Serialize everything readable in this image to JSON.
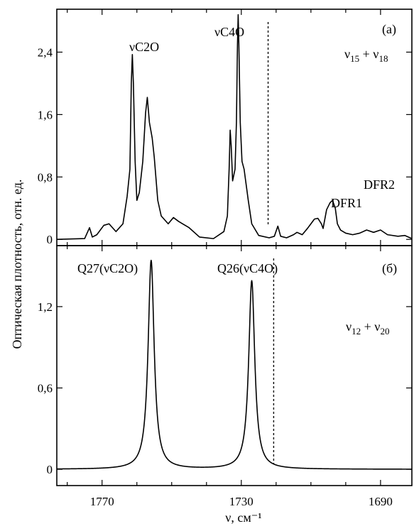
{
  "chart_data": [
    {
      "panel": "a",
      "type": "line",
      "panel_label": "(а)",
      "xlabel": "ν, см⁻¹",
      "ylabel": "Оптическая плотность, отн. ед.",
      "xlim": [
        1783,
        1681
      ],
      "ylim": [
        -0.08,
        2.95
      ],
      "x_ticks": [
        1770,
        1730,
        1690
      ],
      "y_ticks": [
        "0",
        "0,8",
        "1,6",
        "2,4"
      ],
      "y_tick_values": [
        0,
        0.8,
        1.6,
        2.4
      ],
      "series": [
        {
          "points": [
            [
              1783,
              0.0
            ],
            [
              1775,
              0.01
            ],
            [
              1773.6,
              0.15
            ],
            [
              1772.8,
              0.03
            ],
            [
              1771.5,
              0.06
            ],
            [
              1769.5,
              0.18
            ],
            [
              1768,
              0.2
            ],
            [
              1766,
              0.1
            ],
            [
              1764,
              0.2
            ],
            [
              1762.8,
              0.55
            ],
            [
              1762,
              0.9
            ],
            [
              1761.6,
              2.0
            ],
            [
              1761.3,
              2.37
            ],
            [
              1761.0,
              2.0
            ],
            [
              1760.5,
              1.0
            ],
            [
              1760,
              0.5
            ],
            [
              1759.3,
              0.6
            ],
            [
              1758.3,
              1.0
            ],
            [
              1757.5,
              1.62
            ],
            [
              1757,
              1.82
            ],
            [
              1756.4,
              1.5
            ],
            [
              1755.6,
              1.3
            ],
            [
              1755,
              1.05
            ],
            [
              1754,
              0.5
            ],
            [
              1753,
              0.3
            ],
            [
              1751,
              0.2
            ],
            [
              1749.5,
              0.28
            ],
            [
              1748,
              0.23
            ],
            [
              1745,
              0.15
            ],
            [
              1742,
              0.03
            ],
            [
              1738,
              0.01
            ],
            [
              1735,
              0.1
            ],
            [
              1734,
              0.3
            ],
            [
              1733.5,
              0.9
            ],
            [
              1733.2,
              1.4
            ],
            [
              1732.9,
              1.2
            ],
            [
              1732.5,
              0.75
            ],
            [
              1731.8,
              0.9
            ],
            [
              1731.4,
              1.5
            ],
            [
              1731.1,
              2.5
            ],
            [
              1730.9,
              2.88
            ],
            [
              1730.7,
              2.5
            ],
            [
              1730.3,
              1.5
            ],
            [
              1729.8,
              1.0
            ],
            [
              1729.2,
              0.9
            ],
            [
              1728,
              0.5
            ],
            [
              1727,
              0.2
            ],
            [
              1725,
              0.05
            ],
            [
              1722,
              0.02
            ],
            [
              1720.5,
              0.04
            ],
            [
              1719.5,
              0.17
            ],
            [
              1718.7,
              0.04
            ],
            [
              1717,
              0.02
            ],
            [
              1715,
              0.06
            ],
            [
              1714,
              0.09
            ],
            [
              1712.5,
              0.06
            ],
            [
              1711,
              0.14
            ],
            [
              1710,
              0.2
            ],
            [
              1709,
              0.26
            ],
            [
              1708,
              0.27
            ],
            [
              1707,
              0.2
            ],
            [
              1706.5,
              0.14
            ],
            [
              1705.5,
              0.38
            ],
            [
              1704.5,
              0.47
            ],
            [
              1703.8,
              0.5
            ],
            [
              1703,
              0.4
            ],
            [
              1702.4,
              0.2
            ],
            [
              1701.5,
              0.12
            ],
            [
              1700,
              0.08
            ],
            [
              1698,
              0.06
            ],
            [
              1696,
              0.08
            ],
            [
              1694,
              0.12
            ],
            [
              1692,
              0.09
            ],
            [
              1690,
              0.12
            ],
            [
              1688,
              0.06
            ],
            [
              1685,
              0.04
            ],
            [
              1683,
              0.05
            ],
            [
              1681,
              0.01
            ]
          ]
        }
      ],
      "dashed_marker_x": 1722.3,
      "annotations": [
        {
          "text": "νC2O",
          "x": 1761.5,
          "y": 2.6
        },
        {
          "text": "νC4O",
          "x": 1732.4,
          "y": 2.72
        },
        {
          "text": "DFR1",
          "x": 1706.5,
          "y": 0.35
        },
        {
          "text": "DFR2",
          "x": 1692.3,
          "y": 0.62
        }
      ],
      "combination_label": {
        "nu": "ν",
        "sub1": "15",
        "plus": " + ",
        "sub2": "18"
      }
    },
    {
      "panel": "б",
      "type": "line",
      "panel_label": "(б)",
      "xlabel": "ν, см⁻¹",
      "ylim": [
        -0.12,
        1.65
      ],
      "y_ticks": [
        "0",
        "0,6",
        "1,2"
      ],
      "y_tick_values": [
        0,
        0.6,
        1.2
      ],
      "series": [
        {
          "peaks": [
            {
              "center": 1755.9,
              "height": 1.54,
              "width": 1.05
            },
            {
              "center": 1727.0,
              "height": 1.39,
              "width": 1.05
            }
          ]
        }
      ],
      "dashed_marker_x": 1720.7,
      "annotations": [
        {
          "text": "Q27(νC2O)",
          "x": 1765.5,
          "y": 1.36
        },
        {
          "text": "Q26(νC4O)",
          "x": 1732.6,
          "y": 1.36
        }
      ],
      "combination_label": {
        "nu": "ν",
        "sub1": "12",
        "plus": " + ",
        "sub2": "20"
      }
    }
  ]
}
